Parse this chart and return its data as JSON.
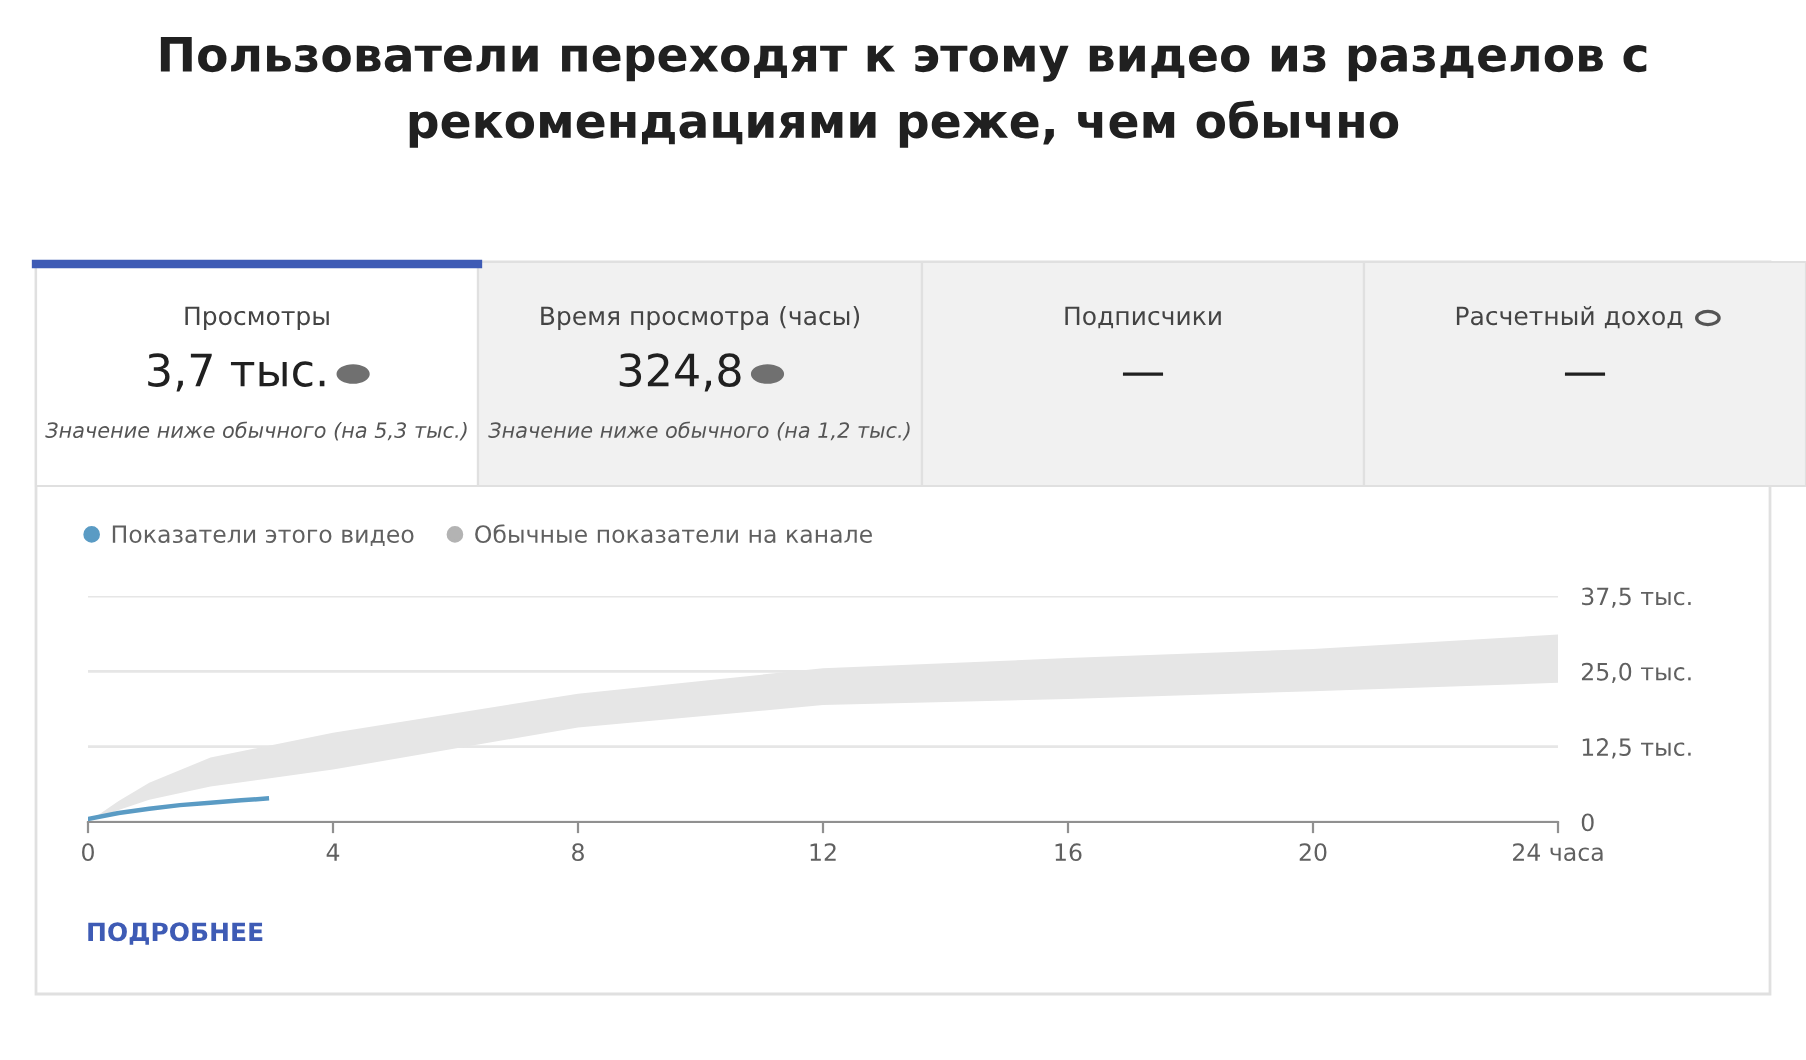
{
  "chart_data": [
    {
      "type": "other",
      "title": "Пользователи переходят к этому видео из разделов с рекомендациями реже, чем обычно",
      "annotations": [
        "Просмотры",
        "3,7 тыс.",
        "Значение ниже обычного (на 5,3 тыс.)",
        "Время просмотра (часы)",
        "324,8",
        "Значение ниже обычного (на 1,2 тыс.)",
        "Подписчики",
        "—",
        "Расчетный доход",
        "—"
      ]
    },
    {
      "type": "line",
      "legend": "top left",
      "grid": "y",
      "xlim": [
        0,
        24
      ],
      "xticks": [
        0,
        4,
        8,
        12,
        16,
        20,
        {
          "value": 24,
          "label": "24 часа"
        }
      ],
      "ylim": [
        0,
        37.5
      ],
      "yticks": [
        {
          "value": 0,
          "label": "0"
        },
        {
          "value": 12.5,
          "label": "12,5 тыс."
        },
        {
          "value": 25,
          "label": "25,0 тыс."
        },
        {
          "value": 37.5,
          "label": "37,5 тыс."
        }
      ],
      "annotations": [
        "ПОДРОБНЕЕ"
      ],
      "series": [
        {
          "name": "Показатели этого видео",
          "color": "#5a9bc4",
          "x": [
            0,
            0.5,
            1,
            1.5,
            2,
            2.5,
            2.92
          ],
          "values": [
            0.5,
            1.5,
            2.2,
            2.8,
            3.2,
            3.6,
            3.9
          ]
        },
        {
          "name": "Обычные показатели на канале",
          "type": "area",
          "color": "#b3b3b3",
          "x": [
            0,
            0.5,
            1,
            2,
            4,
            8,
            12,
            16,
            20,
            24
          ],
          "values": [
            null,
            null,
            null,
            null,
            null,
            null,
            null,
            null,
            null,
            null
          ],
          "lower": [
            0,
            2,
            3.7,
            5.9,
            8.7,
            15.7,
            19.4,
            20.4,
            21.7,
            23.1
          ],
          "upper": [
            0,
            3.5,
            6.5,
            10.7,
            14.8,
            21.3,
            25.5,
            27.2,
            28.7,
            31.1
          ]
        }
      ]
    }
  ]
}
